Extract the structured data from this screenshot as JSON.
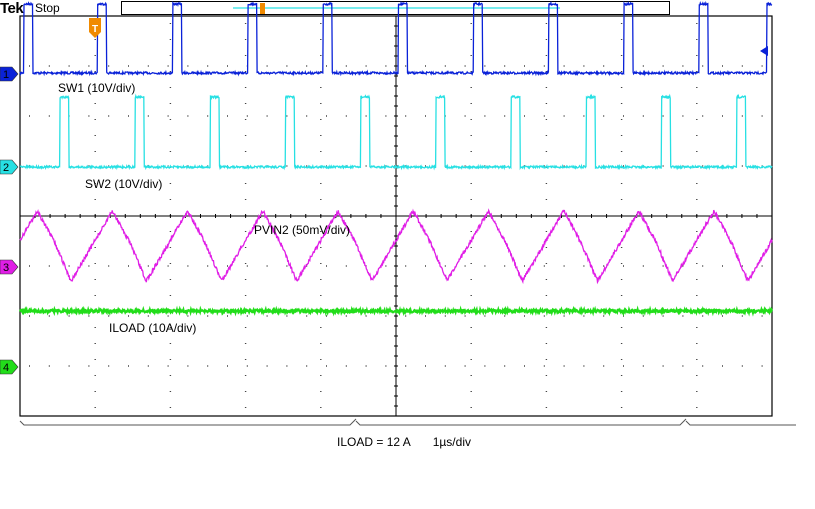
{
  "header": {
    "brand": "Tek",
    "acquisition_state": "Stop"
  },
  "trigger": {
    "label": "T"
  },
  "channels": [
    {
      "id": "1",
      "name": "SW1",
      "label": "SW1 (10V/div)",
      "color": "#0a22d8"
    },
    {
      "id": "2",
      "name": "SW2",
      "label": "SW2 (10V/div)",
      "color": "#27e0e3"
    },
    {
      "id": "3",
      "name": "PVIN2",
      "label": "PVIN2 (50mV/div)",
      "color": "#e01ee6"
    },
    {
      "id": "4",
      "name": "ILOAD",
      "label": "ILOAD (10A/div)",
      "color": "#22dd1a"
    }
  ],
  "footer": {
    "condition": "ILOAD = 12 A",
    "timebase": "1µs/div"
  },
  "chart_data": {
    "type": "line",
    "x_unit": "µs",
    "x_range": [
      0,
      10
    ],
    "grid": true,
    "grid_divisions": {
      "horizontal": 10,
      "vertical": 8
    },
    "series": [
      {
        "name": "SW1",
        "scale": "10V/div",
        "shape": "periodic pulse",
        "pulse_high_time_us": 0.12,
        "edges_us": [
          0.05,
          1.03,
          2.03,
          3.03,
          4.03,
          5.03,
          6.03,
          7.03,
          8.03,
          9.03,
          9.93
        ],
        "low_level_div": 0.02,
        "high_level_div": 1.4
      },
      {
        "name": "SW2",
        "scale": "10V/div",
        "shape": "periodic pulse",
        "pulse_high_time_us": 0.12,
        "edges_us": [
          0.53,
          1.53,
          2.53,
          3.53,
          4.53,
          5.53,
          6.53,
          7.53,
          8.53,
          9.53
        ],
        "low_level_div": 0.0,
        "high_level_div": 1.4
      },
      {
        "name": "PVIN2",
        "scale": "50mV/div",
        "shape": "ripple",
        "period_us": 1.0,
        "min_at_us": [
          0.68,
          1.68,
          2.68,
          3.68,
          4.68,
          5.68,
          6.68,
          7.68,
          8.68,
          9.68
        ],
        "peak_to_peak_div": 1.4
      },
      {
        "name": "ILOAD",
        "scale": "10A/div",
        "shape": "dc",
        "level_div": 0.0
      }
    ]
  }
}
